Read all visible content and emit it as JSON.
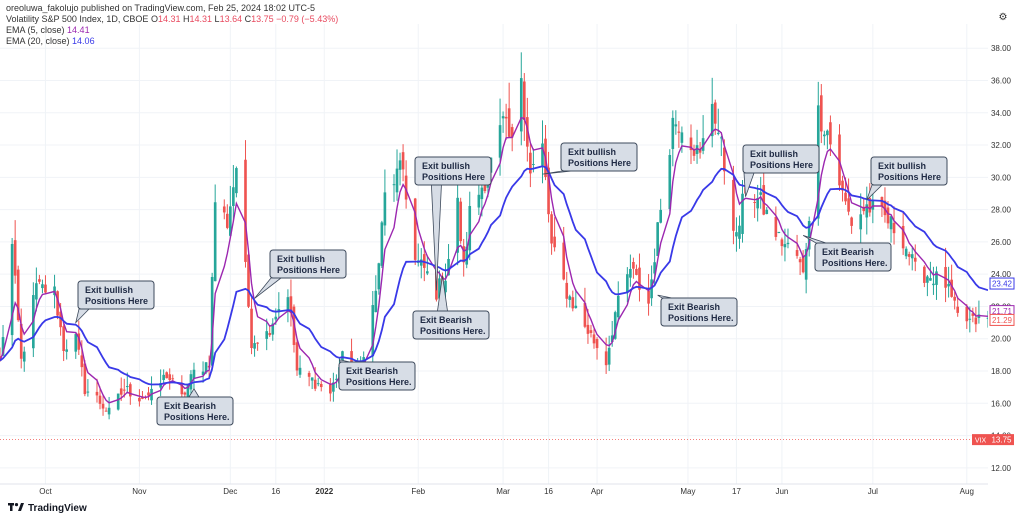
{
  "header": {
    "publisher_line": "oreoluwa_fakolujo published on TradingView.com, Feb 25, 2024 18:02 UTC-5",
    "symbol_line": "Volatility S&P 500 Index, 1D, CBOE",
    "ohlc": [
      {
        "k": "O",
        "v": "14.31"
      },
      {
        "k": "H",
        "v": "14.31"
      },
      {
        "k": "L",
        "v": "13.64"
      },
      {
        "k": "C",
        "v": "13.75"
      }
    ],
    "change": "−0.79 (−5.43%)",
    "ema5_label": "EMA (5, close)",
    "ema5_value": "14.41",
    "ema20_label": "EMA (20, close)",
    "ema20_value": "14.06"
  },
  "footer": {
    "brand": "TradingView"
  },
  "colors": {
    "up": "#26a69a",
    "down": "#ef5350",
    "ema5": "#9c27b0",
    "ema20": "#3939e8",
    "callout_fill": "#d7dde6",
    "callout_stroke": "#3e4a5c",
    "price_line": "#ef5350",
    "grid": "#f0f3f7"
  },
  "chart_data": {
    "type": "candlestick",
    "y_ticks": [
      "12.00",
      "14.00",
      "16.00",
      "18.00",
      "20.00",
      "22.00",
      "24.00",
      "26.00",
      "28.00",
      "30.00",
      "32.00",
      "34.00",
      "36.00",
      "38.00"
    ],
    "ylim": [
      11,
      39.5
    ],
    "x_ticks": [
      {
        "label": "Oct",
        "date": "2021-10-01"
      },
      {
        "label": "Nov",
        "date": "2021-11-01"
      },
      {
        "label": "Dec",
        "date": "2021-12-01"
      },
      {
        "label": "16",
        "date": "2021-12-16"
      },
      {
        "label": "2022",
        "date": "2022-01-01"
      },
      {
        "label": "Feb",
        "date": "2022-02-01"
      },
      {
        "label": "Mar",
        "date": "2022-03-01"
      },
      {
        "label": "16",
        "date": "2022-03-16"
      },
      {
        "label": "Apr",
        "date": "2022-04-01"
      },
      {
        "label": "May",
        "date": "2022-05-01"
      },
      {
        "label": "17",
        "date": "2022-05-17"
      },
      {
        "label": "Jun",
        "date": "2022-06-01"
      },
      {
        "label": "Jul",
        "date": "2022-07-01"
      },
      {
        "label": "Aug",
        "date": "2022-08-01"
      }
    ],
    "xlim": [
      "2021-09-16",
      "2022-08-08"
    ],
    "close_anchors": [
      [
        "2021-09-16",
        18.5
      ],
      [
        "2021-09-20",
        25.7
      ],
      [
        "2021-09-23",
        18.6
      ],
      [
        "2021-09-28",
        23.2
      ],
      [
        "2021-10-04",
        22.9
      ],
      [
        "2021-10-07",
        19.5
      ],
      [
        "2021-10-11",
        20.0
      ],
      [
        "2021-10-14",
        16.9
      ],
      [
        "2021-10-18",
        16.3
      ],
      [
        "2021-10-22",
        15.4
      ],
      [
        "2021-10-27",
        16.9
      ],
      [
        "2021-11-01",
        16.4
      ],
      [
        "2021-11-05",
        16.5
      ],
      [
        "2021-11-10",
        17.8
      ],
      [
        "2021-11-15",
        16.3
      ],
      [
        "2021-11-19",
        17.9
      ],
      [
        "2021-11-24",
        18.6
      ],
      [
        "2021-11-26",
        28.6
      ],
      [
        "2021-11-30",
        27.2
      ],
      [
        "2021-12-03",
        30.7
      ],
      [
        "2021-12-08",
        19.9
      ],
      [
        "2021-12-13",
        20.3
      ],
      [
        "2021-12-16",
        21.6
      ],
      [
        "2021-12-20",
        22.9
      ],
      [
        "2021-12-23",
        18.0
      ],
      [
        "2021-12-30",
        17.2
      ],
      [
        "2022-01-03",
        16.6
      ],
      [
        "2022-01-07",
        18.8
      ],
      [
        "2022-01-12",
        17.6
      ],
      [
        "2022-01-18",
        22.8
      ],
      [
        "2022-01-21",
        28.8
      ],
      [
        "2022-01-24",
        29.9
      ],
      [
        "2022-01-27",
        30.5
      ],
      [
        "2022-01-31",
        24.8
      ],
      [
        "2022-02-03",
        24.3
      ],
      [
        "2022-02-07",
        22.9
      ],
      [
        "2022-02-10",
        23.9
      ],
      [
        "2022-02-14",
        28.3
      ],
      [
        "2022-02-16",
        24.3
      ],
      [
        "2022-02-18",
        27.8
      ],
      [
        "2022-02-24",
        30.3
      ],
      [
        "2022-03-01",
        33.3
      ],
      [
        "2022-03-04",
        31.9
      ],
      [
        "2022-03-07",
        36.5
      ],
      [
        "2022-03-10",
        30.2
      ],
      [
        "2022-03-14",
        31.8
      ],
      [
        "2022-03-17",
        25.7
      ],
      [
        "2022-03-22",
        22.9
      ],
      [
        "2022-03-28",
        20.8
      ],
      [
        "2022-04-04",
        18.6
      ],
      [
        "2022-04-07",
        21.6
      ],
      [
        "2022-04-12",
        24.3
      ],
      [
        "2022-04-18",
        22.2
      ],
      [
        "2022-04-22",
        28.2
      ],
      [
        "2022-04-26",
        33.5
      ],
      [
        "2022-04-29",
        33.4
      ],
      [
        "2022-05-05",
        31.2
      ],
      [
        "2022-05-09",
        34.8
      ],
      [
        "2022-05-12",
        31.8
      ],
      [
        "2022-05-17",
        26.1
      ],
      [
        "2022-05-20",
        29.4
      ],
      [
        "2022-05-25",
        28.4
      ],
      [
        "2022-05-31",
        26.2
      ],
      [
        "2022-06-06",
        25.1
      ],
      [
        "2022-06-08",
        23.9
      ],
      [
        "2022-06-10",
        27.8
      ],
      [
        "2022-06-13",
        34.0
      ],
      [
        "2022-06-16",
        32.9
      ],
      [
        "2022-06-21",
        28.9
      ],
      [
        "2022-06-24",
        27.2
      ],
      [
        "2022-06-29",
        28.2
      ],
      [
        "2022-07-05",
        27.5
      ],
      [
        "2022-07-11",
        26.2
      ],
      [
        "2022-07-15",
        24.2
      ],
      [
        "2022-07-20",
        23.9
      ],
      [
        "2022-07-25",
        23.4
      ],
      [
        "2022-07-29",
        21.3
      ],
      [
        "2022-08-03",
        21.0
      ],
      [
        "2022-08-05",
        21.2
      ]
    ],
    "series": [
      {
        "name": "EMA (5, close)",
        "period": 5
      },
      {
        "name": "EMA (20, close)",
        "period": 20
      }
    ],
    "last_close_labels": [
      {
        "value": "23.42",
        "color": "#3939e8"
      },
      {
        "value": "21.71",
        "color": "#9c27b0"
      },
      {
        "value": "21.29",
        "color": "#ef5350"
      }
    ],
    "price_line": {
      "symbol": "VIX",
      "value": 13.75,
      "label": "13.75"
    },
    "annotations": [
      {
        "text": "Exit bullish Positions Here",
        "lines": [
          "Exit bullish",
          "Positions Here"
        ],
        "date": "2021-10-11",
        "value": 21.0
      },
      {
        "text": "Exit Bearish Positions Here.",
        "lines": [
          "Exit Bearish",
          "Positions Here."
        ],
        "date": "2021-11-19",
        "value": 16.9
      },
      {
        "text": "Exit bullish Positions Here",
        "lines": [
          "Exit bullish",
          "Positions Here"
        ],
        "date": "2021-12-09",
        "value": 22.5
      },
      {
        "text": "Exit Bearish Positions Here.",
        "lines": [
          "Exit Bearish",
          "Positions Here."
        ],
        "date": "2022-01-06",
        "value": 18.7
      },
      {
        "text": "Exit bullish Positions Here",
        "lines": [
          "Exit bullish",
          "Positions Here"
        ],
        "date": "2022-02-07",
        "value": 23.0
      },
      {
        "text": "Exit Bearish Positions Here.",
        "lines": [
          "Exit Bearish",
          "Positions Here."
        ],
        "date": "2022-02-09",
        "value": 23.9
      },
      {
        "text": "Exit bullish Positions Here",
        "lines": [
          "Exit bullish",
          "Positions Here"
        ],
        "date": "2022-03-14",
        "value": 30.2
      },
      {
        "text": "Exit Bearish Positions Here.",
        "lines": [
          "Exit Bearish",
          "Positions Here."
        ],
        "date": "2022-04-21",
        "value": 22.7
      },
      {
        "text": "Exit bullish Positions Here",
        "lines": [
          "Exit bullish",
          "Positions Here"
        ],
        "date": "2022-05-20",
        "value": 28.8
      },
      {
        "text": "Exit Bearish Positions Here.",
        "lines": [
          "Exit Bearish",
          "Positions Here."
        ],
        "date": "2022-06-08",
        "value": 26.4
      },
      {
        "text": "Exit bullish Positions Here",
        "lines": [
          "Exit bullish",
          "Positions Here"
        ],
        "date": "2022-06-29",
        "value": 28.6
      }
    ]
  }
}
